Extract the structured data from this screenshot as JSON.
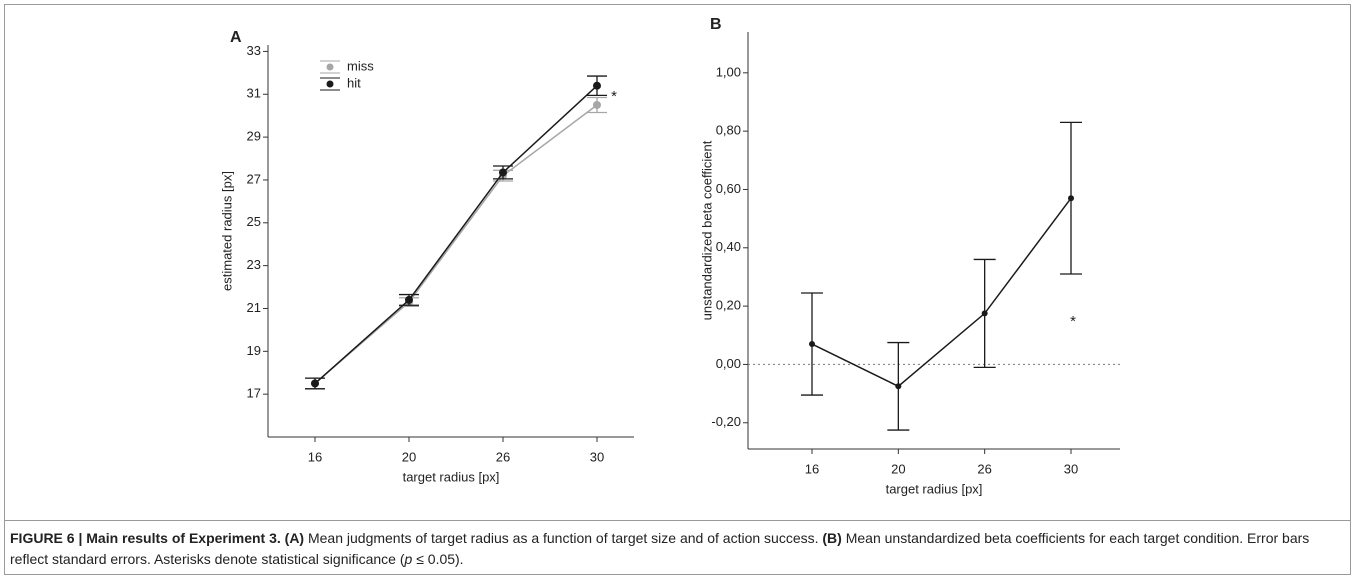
{
  "chart_data": [
    {
      "type": "line",
      "panel_label": "A",
      "x_label": "target radius [px]",
      "y_label": "estimated radius [px]",
      "categories": [
        "16",
        "20",
        "26",
        "30"
      ],
      "series": [
        {
          "name": "miss",
          "color": "#a6a6a6",
          "values": [
            17.5,
            21.3,
            27.2,
            30.5
          ],
          "errors": [
            0.25,
            0.2,
            0.25,
            0.35
          ]
        },
        {
          "name": "hit",
          "color": "#1a1a1a",
          "values": [
            17.5,
            21.4,
            27.35,
            31.4
          ],
          "errors": [
            0.25,
            0.25,
            0.3,
            0.45
          ]
        }
      ],
      "ylim": [
        15,
        33.3
      ],
      "yticks": [
        17,
        19,
        21,
        23,
        25,
        27,
        29,
        31,
        33
      ],
      "legend": "top-left",
      "annotation": "*"
    },
    {
      "type": "line",
      "panel_label": "B",
      "x_label": "target radius [px]",
      "y_label": "unstandardized beta coefficient",
      "categories": [
        "16",
        "20",
        "26",
        "30"
      ],
      "series": [
        {
          "name": "beta",
          "color": "#1a1a1a",
          "values": [
            0.07,
            -0.075,
            0.175,
            0.57
          ],
          "errors": [
            0.175,
            0.15,
            0.185,
            0.26
          ]
        }
      ],
      "ylim": [
        -0.29,
        1.14
      ],
      "yticks": [
        {
          "value": -0.2,
          "label": "-0,20"
        },
        {
          "value": 0,
          "label": "0,00"
        },
        {
          "value": 0.2,
          "label": "0,20"
        },
        {
          "value": 0.4,
          "label": "0,40"
        },
        {
          "value": 0.6,
          "label": "0,60"
        },
        {
          "value": 0.8,
          "label": "0,80"
        },
        {
          "value": 1,
          "label": "1,00"
        }
      ],
      "reference_line": 0,
      "annotation": "*"
    }
  ],
  "caption": {
    "label": "FIGURE 6 | Main results of Experiment 3.",
    "parts": [
      "(A)",
      "Mean judgments of target radius as a function of target size and of action success.",
      "(B)",
      "Mean unstandardized beta coefficients for each target condition. Error bars reflect standard errors. Asterisks denote statistical significance (",
      "p",
      "≤ 0.05)."
    ]
  }
}
